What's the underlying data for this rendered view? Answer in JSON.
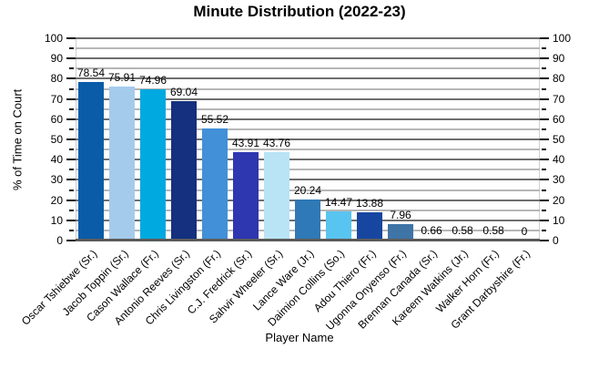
{
  "title": "Minute Distribution (2022-23)",
  "colors": {
    "background": "#ffffff",
    "text": "#000000",
    "grid_major": "#6e6e6e",
    "grid_minor": "#b6b6b6",
    "axis_line": "#5a5a5a",
    "tick": "#111111",
    "plot_border": "#cfcfcf"
  },
  "chart_data": {
    "type": "bar",
    "title": "Minute Distribution (2022-23)",
    "xlabel": "Player Name",
    "ylabel": "% of Time on Court",
    "ylim": [
      0,
      100
    ],
    "y_major_tick_step": 10,
    "y_minor_tick_step": 5,
    "grid": "horizontal gridlines, dark gray at majors (every 10), light gray at minors (every 5)",
    "axes": "y tick labels on both left and right sides, ticks pointing outward",
    "legend_position": "none",
    "x_tick_label_rotation_deg": 45,
    "categories": [
      "Oscar Tshiebwe (Sr.)",
      "Jacob Toppin (Sr.)",
      "Cason Wallace (Fr.)",
      "Antonio Reeves (Sr.)",
      "Chris Livingston (Fr.)",
      "C.J. Fredrick (Sr.)",
      "Sahvir Wheeler (Sr.)",
      "Lance Ware (Jr.)",
      "Daimion Collins (So.)",
      "Adou Thiero (Fr.)",
      "Ugonna Onyenso (Fr.)",
      "Brennan Canada (Sr.)",
      "Kareem Watkins (Jr.)",
      "Walker Horn (Fr.)",
      "Grant Darbyshire (Fr.)"
    ],
    "values": [
      78.54,
      75.91,
      74.96,
      69.04,
      55.52,
      43.91,
      43.76,
      20.24,
      14.47,
      13.88,
      7.96,
      0.66,
      0.58,
      0.58,
      0
    ],
    "value_labels": [
      "78.54",
      "75.91",
      "74.96",
      "69.04",
      "55.52",
      "43.91",
      "43.76",
      "20.24",
      "14.47",
      "13.88",
      "7.96",
      "0.66",
      "0.58",
      "0.58",
      "0"
    ],
    "bar_colors": [
      "#0b5ca8",
      "#a5cbec",
      "#00a9e0",
      "#14307e",
      "#4190d8",
      "#2e36b0",
      "#b8e4f6",
      "#2f79b6",
      "#58c4f0",
      "#1746a0",
      "#3f74a6",
      "#9dbdd8",
      "#2a86c4",
      "#1c3f86",
      "#3f74a6"
    ]
  }
}
